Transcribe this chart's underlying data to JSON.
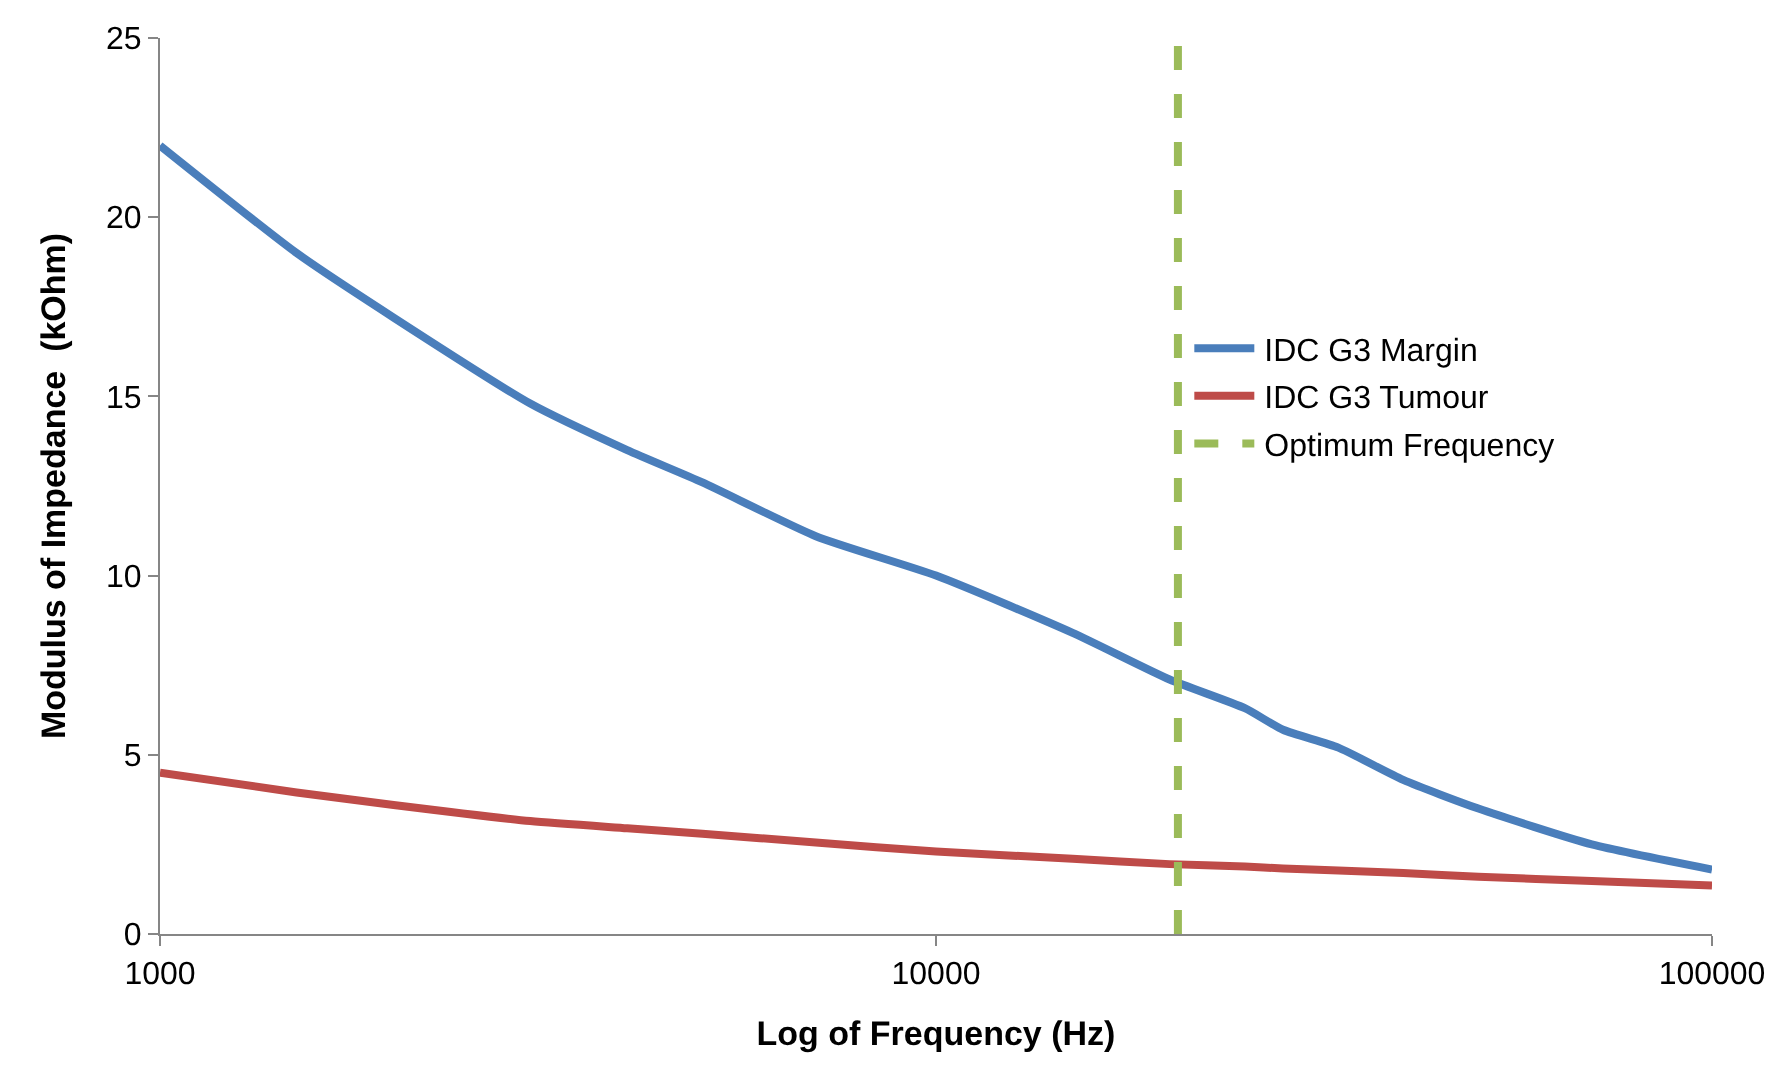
{
  "chart_data": {
    "type": "line",
    "xlabel": "Log of Frequency (Hz)",
    "ylabel": "Modulus of Impedance  (kOhm)",
    "log": "x",
    "x": [
      1000,
      1500,
      2000,
      3000,
      4000,
      5000,
      7000,
      10000,
      15000,
      20000,
      25000,
      28000,
      33000,
      40000,
      50000,
      70000,
      100000
    ],
    "series": [
      {
        "name": "IDC G3 Margin",
        "color": "#4a7ebb",
        "values": [
          22.0,
          19.0,
          17.2,
          14.8,
          13.5,
          12.6,
          11.1,
          10.0,
          8.4,
          7.1,
          6.3,
          5.7,
          5.2,
          4.3,
          3.5,
          2.5,
          1.8
        ]
      },
      {
        "name": "IDC G3 Tumour",
        "color": "#be4b48",
        "values": [
          4.5,
          3.95,
          3.6,
          3.15,
          2.95,
          2.8,
          2.55,
          2.3,
          2.1,
          1.95,
          1.88,
          1.83,
          1.77,
          1.7,
          1.6,
          1.48,
          1.35
        ]
      }
    ],
    "ref_lines": [
      {
        "axis": "x",
        "value": 20500,
        "label": "Optimum Frequency",
        "color": "#9bbb59",
        "line_style": "dashed"
      }
    ],
    "xlim": [
      1000,
      100000
    ],
    "xticks": [
      1000,
      10000,
      100000
    ],
    "ylim": [
      0,
      25
    ],
    "yticks": [
      0,
      5,
      10,
      15,
      20,
      25
    ],
    "legend": "right",
    "line_style": "solid",
    "marker": "none"
  }
}
